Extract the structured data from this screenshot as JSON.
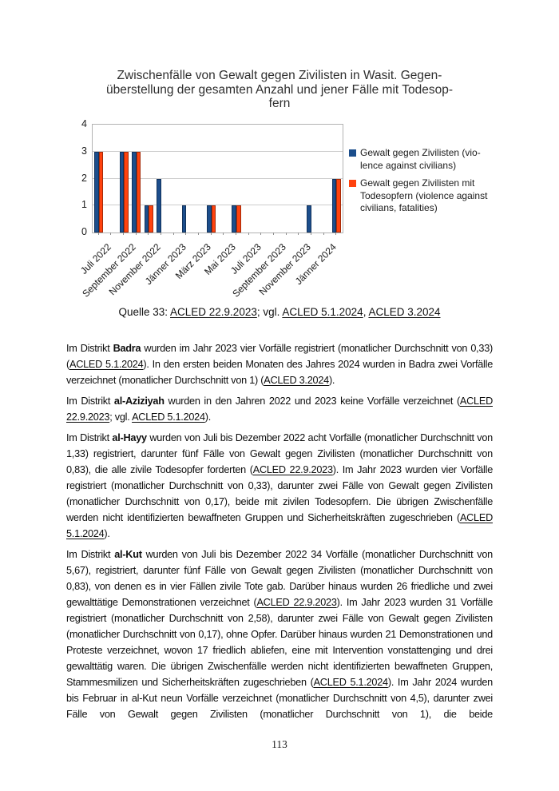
{
  "page": {
    "number": "113"
  },
  "chart": {
    "title_lines": [
      "Zwischenfälle von Gewalt gegen Zivilisten in Wasit. Gegen-",
      "überstellung der gesamten Anzahl und jener Fälle mit Todesop-",
      "fern"
    ]
  },
  "chart_data": {
    "type": "bar",
    "title": "Zwischenfälle von Gewalt gegen Zivilisten in Wasit. Gegenüberstellung der gesamten Anzahl und jener Fälle mit Todesopfern",
    "categories": [
      "Juli 2022",
      "August 2022",
      "September 2022",
      "Oktober 2022",
      "November 2022",
      "Dezember 2022",
      "Jänner 2023",
      "Februar 2023",
      "März 2023",
      "April 2023",
      "Mai 2023",
      "Juni 2023",
      "Juli 2023",
      "August 2023",
      "September 2023",
      "Oktober 2023",
      "November 2023",
      "Dezember 2023",
      "Jänner 2024",
      "Februar 2024"
    ],
    "x_tick_labels": [
      "Juli 2022",
      "September 2022",
      "November 2022",
      "Jänner 2023",
      "März 2023",
      "Mai 2023",
      "Juli 2023",
      "September 2023",
      "November 2023",
      "Jänner 2024"
    ],
    "series": [
      {
        "name": "Gewalt gegen Zivilisten (violence against civilians)",
        "color": "#1c4e8c",
        "values": [
          3,
          0,
          3,
          3,
          1,
          2,
          0,
          1,
          0,
          1,
          0,
          1,
          0,
          0,
          0,
          0,
          0,
          1,
          0,
          2
        ]
      },
      {
        "name": "Gewalt gegen Zivilisten mit Todesopfern (violence against civilians, fatalities)",
        "color": "#ff420e",
        "values": [
          3,
          0,
          3,
          3,
          1,
          0,
          0,
          0,
          0,
          1,
          0,
          1,
          0,
          0,
          0,
          0,
          0,
          0,
          0,
          2
        ]
      }
    ],
    "ylim": [
      0,
      4
    ],
    "yticks": [
      0,
      1,
      2,
      3,
      4
    ],
    "grid": true,
    "legend_position": "right"
  },
  "legend": {
    "items": [
      {
        "color": "#1c4e8c",
        "lines": [
          "Gewalt gegen Zivilisten (vio-",
          "lence against civilians)"
        ]
      },
      {
        "color": "#ff420e",
        "lines": [
          "Gewalt gegen Zivilisten mit",
          "Todesopfern (violence against",
          "civilians, fatalities)"
        ]
      }
    ]
  },
  "source": {
    "segments": [
      {
        "t": "Quelle 33: "
      },
      {
        "t": "ACLED 22.9.2023",
        "u": true
      },
      {
        "t": "; vgl. "
      },
      {
        "t": "ACLED 5.1.2024",
        "u": true
      },
      {
        "t": ", "
      },
      {
        "t": "ACLED 3.2024",
        "u": true
      }
    ]
  },
  "paragraphs": [
    {
      "segments": [
        {
          "t": "Im Distrikt "
        },
        {
          "t": "Badra",
          "b": true
        },
        {
          "t": " wurden im Jahr 2023 vier Vorfälle registriert (monatlicher Durchschnitt von 0,33) ("
        },
        {
          "t": "ACLED 5.1.2024",
          "u": true
        },
        {
          "t": "). In den ersten beiden Monaten des Jahres 2024 wurden in Badra zwei Vorfälle verzeichnet (monatlicher Durchschnitt von 1) ("
        },
        {
          "t": "ACLED 3.2024",
          "u": true
        },
        {
          "t": ")."
        }
      ]
    },
    {
      "segments": [
        {
          "t": "Im Distrikt "
        },
        {
          "t": "al-Aziziyah",
          "b": true
        },
        {
          "t": " wurden in den Jahren 2022 und 2023 keine Vorfälle verzeichnet ("
        },
        {
          "t": "ACLED 22.9.2023",
          "u": true
        },
        {
          "t": "; vgl. "
        },
        {
          "t": "ACLED 5.1.2024",
          "u": true
        },
        {
          "t": ")."
        }
      ]
    },
    {
      "segments": [
        {
          "t": "Im Distrikt "
        },
        {
          "t": "al-Hayy",
          "b": true
        },
        {
          "t": " wurden von Juli bis Dezember 2022 acht Vorfälle (monatlicher Durchschnitt von 1,33) registriert, darunter fünf Fälle von Gewalt gegen Zivilisten (monatlicher Durchschnitt von 0,83), die alle zivile Todesopfer forderten ("
        },
        {
          "t": "ACLED 22.9.2023",
          "u": true
        },
        {
          "t": "). Im Jahr 2023 wurden vier Vorfälle registriert (monatlicher Durchschnitt von 0,33), darunter zwei Fälle von Gewalt gegen Zivilisten (monatlicher Durchschnitt von 0,17), beide mit zivilen Todesopfern. Die übrigen Zwischenfälle werden nicht identifizierten bewaffneten Gruppen und Sicherheitskräften zugeschrieben ("
        },
        {
          "t": "ACLED 5.1.2024",
          "u": true
        },
        {
          "t": ")."
        }
      ]
    },
    {
      "continues": true,
      "segments": [
        {
          "t": "Im Distrikt "
        },
        {
          "t": "al-Kut",
          "b": true
        },
        {
          "t": " wurden von Juli bis Dezember 2022 34 Vorfälle (monatlicher Durchschnitt von 5,67), registriert, darunter fünf Fälle von Gewalt gegen Zivilisten (monatlicher Durchschnitt von 0,83), von denen es in vier Fällen zivile Tote gab. Darüber hinaus wurden 26 friedliche und zwei gewalttätige Demonstrationen verzeichnet ("
        },
        {
          "t": "ACLED 22.9.2023",
          "u": true
        },
        {
          "t": "). Im Jahr 2023 wurden 31 Vorfälle registriert (monatlicher Durchschnitt von 2,58), darunter zwei Fälle von Gewalt gegen Zivilisten (monatlicher Durchschnitt von 0,17), ohne Opfer. Darüber hinaus wurden 21 Demonstrationen und Proteste verzeichnet, wovon 17 friedlich abliefen, eine mit Intervention vonstattenging und drei gewalttätig waren. Die übrigen Zwischenfälle werden nicht identifizierten bewaffneten Gruppen, Stammesmilizen und Sicherheitskräften zugeschrieben ("
        },
        {
          "t": "ACLED 5.1.2024",
          "u": true
        },
        {
          "t": "). Im Jahr 2024 wurden bis Februar in al-Kut neun Vorfälle verzeichnet (monatlicher Durchschnitt von 4,5), darunter zwei Fälle von Gewalt gegen Zivilisten (monatlicher Durchschnitt von 1), die beide"
        }
      ]
    }
  ]
}
